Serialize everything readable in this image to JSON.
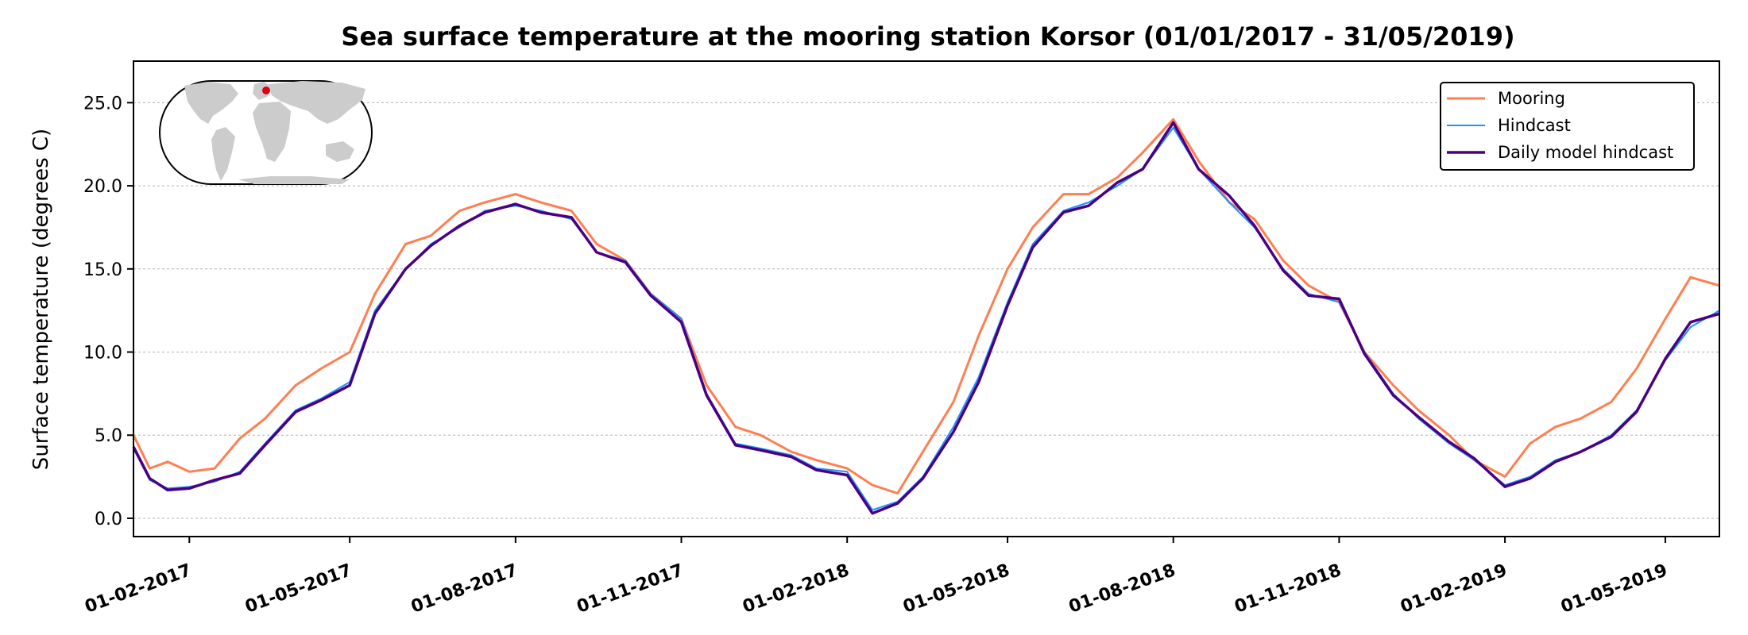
{
  "chart_data": {
    "type": "line",
    "title": "Sea surface temperature at the mooring station Korsor (01/01/2017 - 31/05/2019)",
    "ylabel": "Surface temperature (degrees C)",
    "xlabel": "",
    "xlim": [
      "2017-01-01",
      "2019-05-31"
    ],
    "ylim": [
      -1.1,
      27.5
    ],
    "yticks": [
      0.0,
      5.0,
      10.0,
      15.0,
      20.0,
      25.0
    ],
    "ytick_labels": [
      "0.0",
      "5.0",
      "10.0",
      "15.0",
      "20.0",
      "25.0"
    ],
    "xticks": [
      "2017-02-01",
      "2017-05-01",
      "2017-08-01",
      "2017-11-01",
      "2018-02-01",
      "2018-05-01",
      "2018-08-01",
      "2018-11-01",
      "2019-02-01",
      "2019-05-01"
    ],
    "xtick_labels": [
      "01-02-2017",
      "01-05-2017",
      "01-08-2017",
      "01-11-2017",
      "01-02-2018",
      "01-05-2018",
      "01-08-2018",
      "01-11-2018",
      "01-02-2019",
      "01-05-2019"
    ],
    "grid": "horizontal-dotted",
    "legend": "top-right",
    "inset": "world-map-top-left",
    "series": [
      {
        "name": "Mooring",
        "color": "#ff7f50",
        "x": [
          "2017-01-01",
          "2017-01-10",
          "2017-01-20",
          "2017-02-01",
          "2017-02-15",
          "2017-03-01",
          "2017-03-15",
          "2017-04-01",
          "2017-04-15",
          "2017-05-01",
          "2017-05-15",
          "2017-06-01",
          "2017-06-15",
          "2017-07-01",
          "2017-07-15",
          "2017-08-01",
          "2017-08-15",
          "2017-09-01",
          "2017-09-15",
          "2017-10-01",
          "2017-10-15",
          "2017-11-01",
          "2017-11-15",
          "2017-12-01",
          "2017-12-15",
          "2018-01-01",
          "2018-01-15",
          "2018-02-01",
          "2018-02-15",
          "2018-03-01",
          "2018-03-15",
          "2018-04-01",
          "2018-04-15",
          "2018-05-01",
          "2018-05-15",
          "2018-06-01",
          "2018-06-15",
          "2018-07-01",
          "2018-07-15",
          "2018-08-01",
          "2018-08-15",
          "2018-09-01",
          "2018-09-15",
          "2018-10-01",
          "2018-10-15",
          "2018-11-01",
          "2018-11-15",
          "2018-12-01",
          "2018-12-15",
          "2019-01-01",
          "2019-01-15",
          "2019-02-01",
          "2019-02-15",
          "2019-03-01",
          "2019-03-15",
          "2019-04-01",
          "2019-04-15",
          "2019-05-01",
          "2019-05-15",
          "2019-05-31"
        ],
        "y": [
          5.0,
          3.0,
          3.4,
          2.8,
          3.0,
          4.8,
          6.0,
          8.0,
          9.0,
          10.0,
          13.5,
          16.5,
          17.0,
          18.5,
          19.0,
          19.5,
          19.0,
          18.5,
          16.5,
          15.5,
          13.5,
          12.0,
          8.0,
          5.5,
          5.0,
          4.0,
          3.5,
          3.0,
          2.0,
          1.5,
          4.0,
          7.0,
          11.0,
          15.0,
          17.5,
          19.5,
          19.5,
          20.5,
          22.0,
          24.0,
          21.5,
          19.0,
          18.0,
          15.5,
          14.0,
          13.0,
          10.0,
          8.0,
          6.5,
          5.0,
          3.5,
          2.5,
          4.5,
          5.5,
          6.0,
          7.0,
          9.0,
          12.0,
          14.5,
          14.0
        ]
      },
      {
        "name": "Hindcast",
        "color": "#1e90ff",
        "x": [
          "2017-01-01",
          "2017-01-10",
          "2017-01-20",
          "2017-02-01",
          "2017-02-15",
          "2017-03-01",
          "2017-03-15",
          "2017-04-01",
          "2017-04-15",
          "2017-05-01",
          "2017-05-15",
          "2017-06-01",
          "2017-06-15",
          "2017-07-01",
          "2017-07-15",
          "2017-08-01",
          "2017-08-15",
          "2017-09-01",
          "2017-09-15",
          "2017-10-01",
          "2017-10-15",
          "2017-11-01",
          "2017-11-15",
          "2017-12-01",
          "2017-12-15",
          "2018-01-01",
          "2018-01-15",
          "2018-02-01",
          "2018-02-15",
          "2018-03-01",
          "2018-03-15",
          "2018-04-01",
          "2018-04-15",
          "2018-05-01",
          "2018-05-15",
          "2018-06-01",
          "2018-06-15",
          "2018-07-01",
          "2018-07-15",
          "2018-08-01",
          "2018-08-15",
          "2018-09-01",
          "2018-09-15",
          "2018-10-01",
          "2018-10-15",
          "2018-11-01",
          "2018-11-15",
          "2018-12-01",
          "2018-12-15",
          "2019-01-01",
          "2019-01-15",
          "2019-02-01",
          "2019-02-15",
          "2019-03-01",
          "2019-03-15",
          "2019-04-01",
          "2019-04-15",
          "2019-05-01",
          "2019-05-15",
          "2019-05-31"
        ],
        "y": [
          4.2,
          2.3,
          1.8,
          1.9,
          2.2,
          2.8,
          4.5,
          6.5,
          7.2,
          8.2,
          12.5,
          15.0,
          16.5,
          17.5,
          18.5,
          18.8,
          18.5,
          18.0,
          16.0,
          15.5,
          13.5,
          12.0,
          7.5,
          4.5,
          4.2,
          3.8,
          3.0,
          2.8,
          0.5,
          1.0,
          2.5,
          5.5,
          8.5,
          13.0,
          16.5,
          18.5,
          19.0,
          20.0,
          21.0,
          23.5,
          21.0,
          19.0,
          17.5,
          15.0,
          13.5,
          13.0,
          10.0,
          7.5,
          6.0,
          4.5,
          3.5,
          2.0,
          2.5,
          3.5,
          4.0,
          5.0,
          6.5,
          9.5,
          11.5,
          12.5
        ]
      },
      {
        "name": "Daily model hindcast",
        "color": "#4b0082",
        "x": [
          "2017-01-01",
          "2017-01-10",
          "2017-01-20",
          "2017-02-01",
          "2017-02-15",
          "2017-03-01",
          "2017-03-15",
          "2017-04-01",
          "2017-04-15",
          "2017-05-01",
          "2017-05-15",
          "2017-06-01",
          "2017-06-15",
          "2017-07-01",
          "2017-07-15",
          "2017-08-01",
          "2017-08-15",
          "2017-09-01",
          "2017-09-15",
          "2017-10-01",
          "2017-10-15",
          "2017-11-01",
          "2017-11-15",
          "2017-12-01",
          "2017-12-15",
          "2018-01-01",
          "2018-01-15",
          "2018-02-01",
          "2018-02-15",
          "2018-03-01",
          "2018-03-15",
          "2018-04-01",
          "2018-04-15",
          "2018-05-01",
          "2018-05-15",
          "2018-06-01",
          "2018-06-15",
          "2018-07-01",
          "2018-07-15",
          "2018-08-01",
          "2018-08-15",
          "2018-09-01",
          "2018-09-15",
          "2018-10-01",
          "2018-10-15",
          "2018-11-01",
          "2018-11-15",
          "2018-12-01",
          "2018-12-15",
          "2019-01-01",
          "2019-01-15",
          "2019-02-01",
          "2019-02-15",
          "2019-03-01",
          "2019-03-15",
          "2019-04-01",
          "2019-04-15",
          "2019-05-01",
          "2019-05-15",
          "2019-05-31"
        ],
        "y": [
          4.3,
          2.4,
          1.7,
          1.8,
          2.3,
          2.7,
          4.4,
          6.4,
          7.1,
          8.0,
          12.3,
          15.0,
          16.4,
          17.6,
          18.4,
          18.9,
          18.4,
          18.1,
          16.0,
          15.4,
          13.4,
          11.8,
          7.4,
          4.4,
          4.1,
          3.7,
          2.9,
          2.6,
          0.3,
          0.9,
          2.4,
          5.2,
          8.2,
          12.8,
          16.3,
          18.4,
          18.8,
          20.2,
          21.0,
          23.8,
          21.0,
          19.4,
          17.6,
          14.9,
          13.4,
          13.2,
          9.9,
          7.4,
          6.1,
          4.6,
          3.6,
          1.9,
          2.4,
          3.4,
          4.0,
          4.9,
          6.4,
          9.6,
          11.8,
          12.3
        ]
      }
    ]
  }
}
